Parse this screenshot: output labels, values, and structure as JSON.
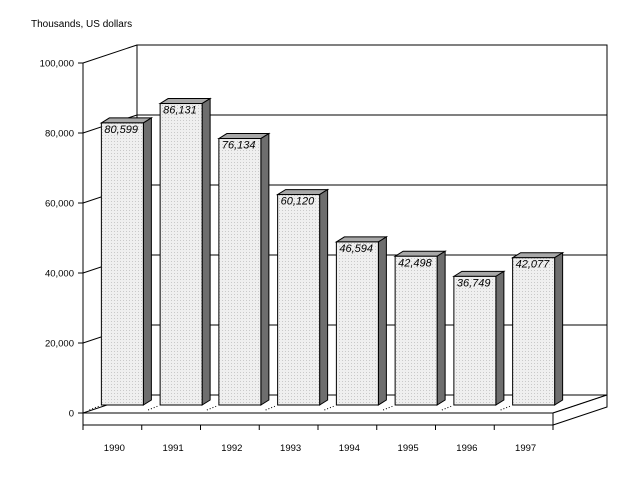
{
  "chart_data": {
    "type": "bar",
    "title": "",
    "ylabel": "Thousands, US dollars",
    "xlabel": "",
    "categories": [
      "1990",
      "1991",
      "1992",
      "1993",
      "1994",
      "1995",
      "1996",
      "1997"
    ],
    "values": [
      80599,
      86131,
      76134,
      60120,
      46594,
      42498,
      36749,
      42077
    ],
    "value_labels": [
      "80,599",
      "86,131",
      "76,134",
      "60,120",
      "46,594",
      "42,498",
      "36,749",
      "42,077"
    ],
    "ylim": [
      0,
      100000
    ],
    "yticks": [
      0,
      20000,
      40000,
      60000,
      80000,
      100000
    ],
    "ytick_labels": [
      "0",
      "20,000",
      "40,000",
      "60,000",
      "80,000",
      "100,000"
    ],
    "grid": true,
    "style": "3d",
    "colors": {
      "bar_front": "#ececec",
      "bar_side": "#6e6e6e",
      "bar_top": "#a8a8a8",
      "grid": "#000000"
    }
  }
}
